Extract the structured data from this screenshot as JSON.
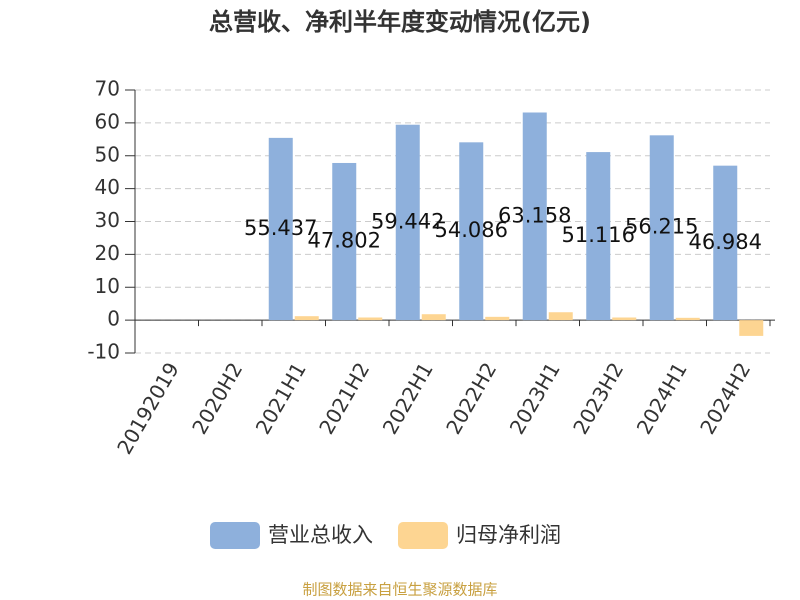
{
  "chart_data": {
    "type": "bar",
    "title": "总营收、净利半年度变动情况(亿元)",
    "categories": [
      "20192019",
      "2020H2",
      "2021H1",
      "2021H2",
      "2022H1",
      "2022H2",
      "2023H1",
      "2023H2",
      "2024H1",
      "2024H2"
    ],
    "series": [
      {
        "name": "营业总收入",
        "color": "#8eb0dc",
        "values": [
          null,
          null,
          55.437,
          47.802,
          59.442,
          54.086,
          63.158,
          51.116,
          56.215,
          46.984
        ],
        "show_labels": true
      },
      {
        "name": "归母净利润",
        "color": "#fdd592",
        "values": [
          null,
          null,
          1.2,
          0.8,
          1.8,
          1.0,
          2.4,
          0.8,
          0.7,
          -4.8
        ],
        "show_labels": false
      }
    ],
    "ylim": [
      -10,
      70
    ],
    "yticks": [
      -10,
      0,
      10,
      20,
      30,
      40,
      50,
      60,
      70
    ],
    "grid": true,
    "source": "制图数据来自恒生聚源数据库"
  }
}
